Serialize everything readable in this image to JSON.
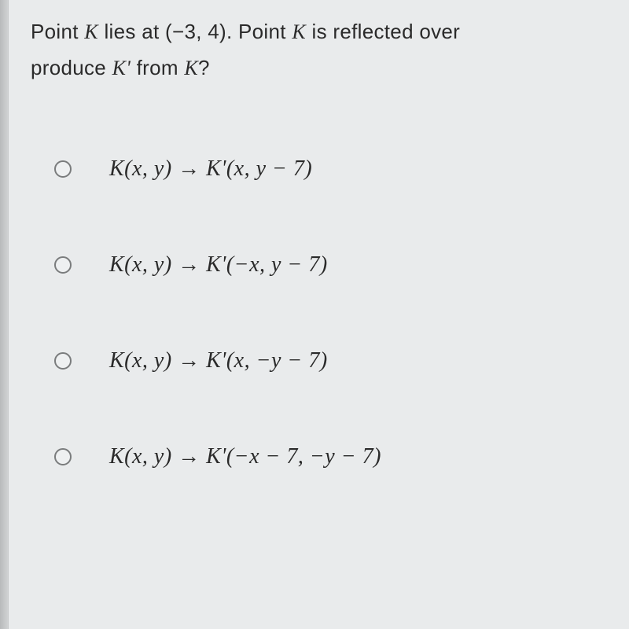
{
  "question": {
    "line1_pre": "Point ",
    "var_K": "K",
    "line1_mid": " lies at (−3, 4). Point ",
    "line1_post": " is reflected over",
    "line2_pre": "produce ",
    "var_Kp": "K'",
    "line2_mid": " from ",
    "line2_post": "?"
  },
  "options": [
    {
      "formula_html": "K(x, y) → K'(x, y − 7)"
    },
    {
      "formula_html": "K(x, y) → K'(−x, y − 7)"
    },
    {
      "formula_html": "K(x, y) → K'(x, −y − 7)"
    },
    {
      "formula_html": "K(x, y) → K'(−x − 7, −y − 7)"
    }
  ],
  "colors": {
    "background": "#e9ebec",
    "text": "#2a2a2a",
    "radio_border": "#7a7c7d"
  }
}
